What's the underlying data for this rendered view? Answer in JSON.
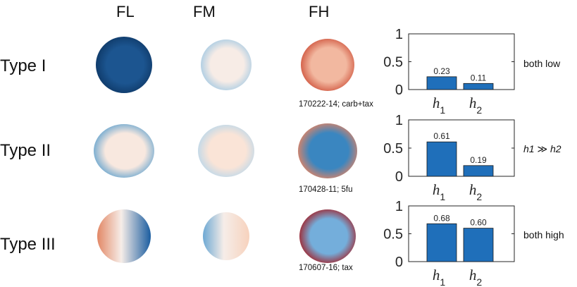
{
  "column_headers": [
    "FL",
    "FM",
    "FH"
  ],
  "rows": [
    {
      "type_label": "Type I",
      "caption": "170222-14; carb+tax",
      "annotation": "both low",
      "annotation_italic": false,
      "h_values": [
        0.23,
        0.11
      ],
      "h_value_labels": [
        "0.23",
        "0.11"
      ],
      "maps": {
        "FL": {
          "center": "#1c5590",
          "edge": "#0e3866"
        },
        "FM": {
          "center": "#f7ece6",
          "edge": "#a8cbe3"
        },
        "FH": {
          "center": "#f2b8a0",
          "edge": "#d0563f"
        }
      }
    },
    {
      "type_label": "Type II",
      "caption": "170428-11; 5fu",
      "annotation": "h1 ≫ h2",
      "annotation_italic": true,
      "h_values": [
        0.61,
        0.19
      ],
      "h_value_labels": [
        "0.61",
        "0.19"
      ],
      "maps": {
        "FL": {
          "center": "#f8e8df",
          "edge": "#6aa6cf"
        },
        "FM": {
          "center": "#fae4d7",
          "edge": "#bdd8ea"
        },
        "FH": {
          "center": "#3a86c0",
          "edge": "#e28363"
        }
      }
    },
    {
      "type_label": "Type III",
      "caption": "170607-16; tax",
      "annotation": "both high",
      "annotation_italic": false,
      "h_values": [
        0.68,
        0.6
      ],
      "h_value_labels": [
        "0.68",
        "0.60"
      ],
      "maps": {
        "FL": {
          "left": "#e28866",
          "right": "#1b5da0"
        },
        "FM": {
          "left": "#6ea9d4",
          "right": "#f7d2bd"
        },
        "FH": {
          "center": "#74aedb",
          "edge": "#a3222a"
        }
      }
    }
  ],
  "chart_data": [
    {
      "type": "bar",
      "title": "Type I",
      "categories": [
        "h1",
        "h2"
      ],
      "values": [
        0.23,
        0.11
      ],
      "ylim": [
        0,
        1
      ],
      "yticks": [
        0,
        0.5,
        1
      ],
      "ytick_labels": [
        "0",
        "0.5",
        "1"
      ],
      "color": "#1f6fba"
    },
    {
      "type": "bar",
      "title": "Type II",
      "categories": [
        "h1",
        "h2"
      ],
      "values": [
        0.61,
        0.19
      ],
      "ylim": [
        0,
        1
      ],
      "yticks": [
        0,
        0.5,
        1
      ],
      "ytick_labels": [
        "0",
        "0.5",
        "1"
      ],
      "color": "#1f6fba"
    },
    {
      "type": "bar",
      "title": "Type III",
      "categories": [
        "h1",
        "h2"
      ],
      "values": [
        0.68,
        0.6
      ],
      "ylim": [
        0,
        1
      ],
      "yticks": [
        0,
        0.5,
        1
      ],
      "ytick_labels": [
        "0",
        "0.5",
        "1"
      ],
      "color": "#1f6fba"
    }
  ]
}
